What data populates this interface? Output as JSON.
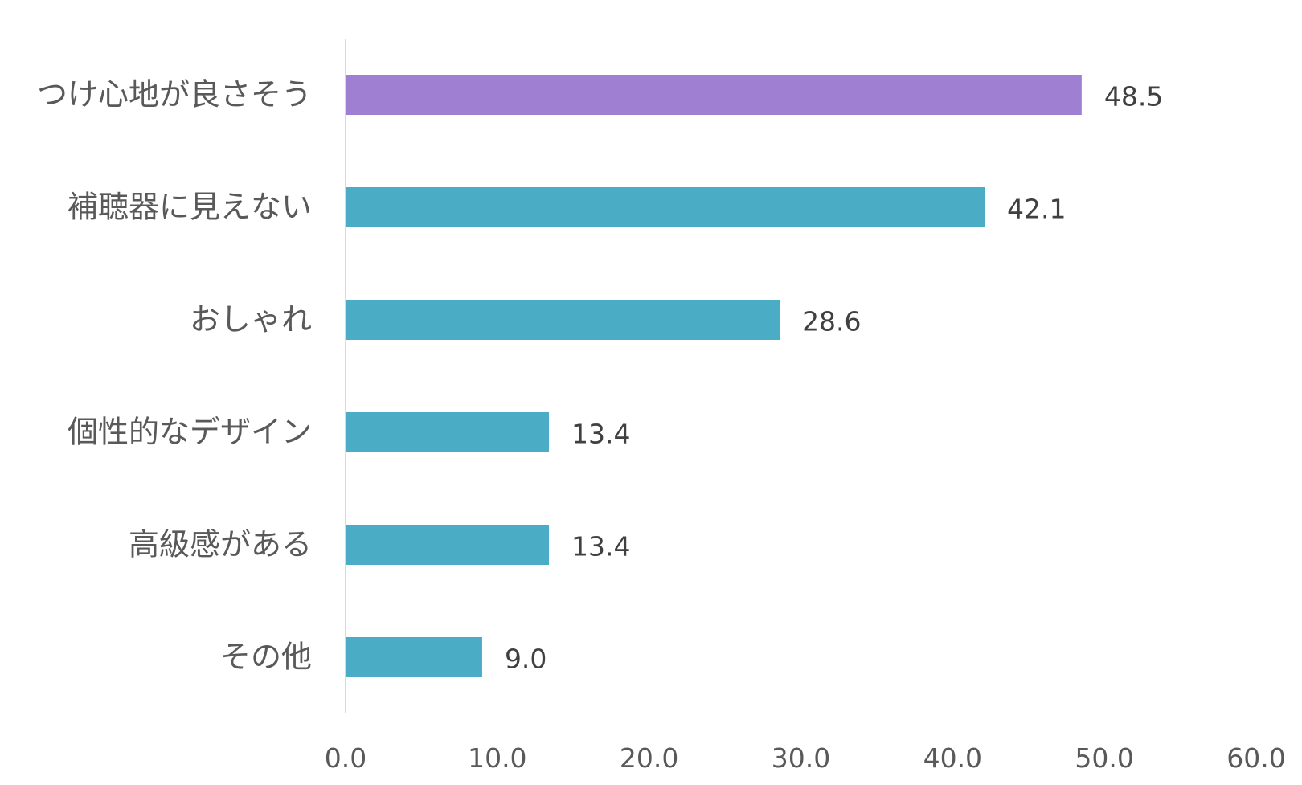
{
  "chart_data": {
    "type": "bar",
    "orientation": "horizontal",
    "categories": [
      "つけ心地が良さそう",
      "補聴器に見えない",
      "おしゃれ",
      "個性的なデザイン",
      "高級感がある",
      "その他"
    ],
    "values": [
      48.5,
      42.1,
      28.6,
      13.4,
      13.4,
      9.0
    ],
    "value_labels": [
      "48.5",
      "42.1",
      "28.6",
      "13.4",
      "13.4",
      "9.0"
    ],
    "bar_colors": [
      "#9e7fd1",
      "#4bacc6",
      "#4bacc6",
      "#4bacc6",
      "#4bacc6",
      "#4bacc6"
    ],
    "xlim": [
      0,
      60
    ],
    "x_ticks": [
      0,
      10,
      20,
      30,
      40,
      50,
      60
    ],
    "x_tick_labels": [
      "0.0",
      "10.0",
      "20.0",
      "30.0",
      "40.0",
      "50.0",
      "60.0"
    ],
    "title": "",
    "xlabel": "",
    "ylabel": "",
    "grid": false,
    "legend": "none",
    "axis_color": "#d9d9d9"
  }
}
